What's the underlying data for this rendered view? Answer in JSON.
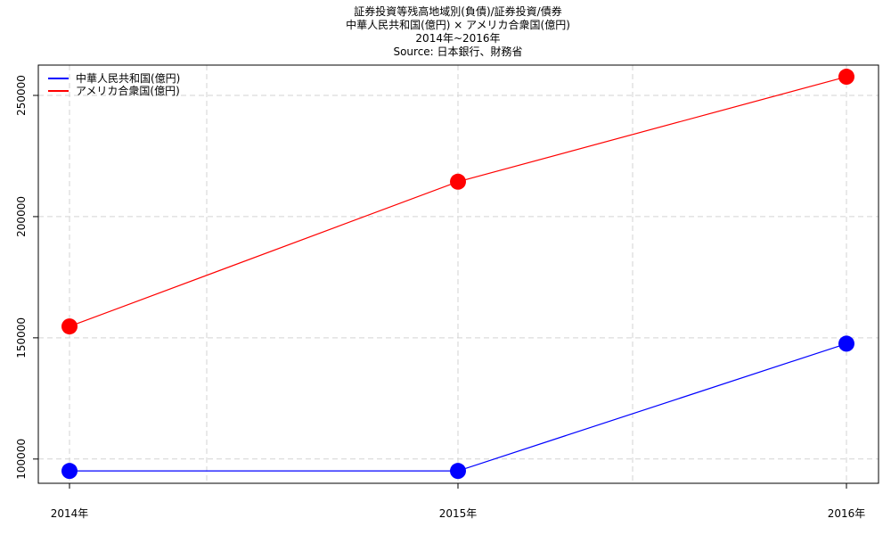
{
  "chart_data": {
    "type": "line",
    "title": "証券投資等残高地域別(負債)/証券投資/債券",
    "subtitle": "中華人民共和国(億円) × アメリカ合衆国(億円)",
    "period": "2014年~2016年",
    "source": "Source: 日本銀行、財務省",
    "categories": [
      "2014年",
      "2015年",
      "2016年"
    ],
    "series": [
      {
        "name": "中華人民共和国(億円)",
        "color": "#0000ff",
        "values": [
          95100,
          95100,
          147600
        ]
      },
      {
        "name": "アメリカ合衆国(億円)",
        "color": "#ff0000",
        "values": [
          154700,
          214400,
          257700
        ]
      }
    ],
    "y_ticks": [
      100000,
      150000,
      200000,
      250000
    ],
    "y_tick_labels": [
      "100000",
      "150000",
      "200000",
      "250000"
    ],
    "ylim": [
      90000,
      262500
    ],
    "xlabel": "",
    "ylabel": "",
    "grid": true,
    "legend_position": "top-left"
  }
}
